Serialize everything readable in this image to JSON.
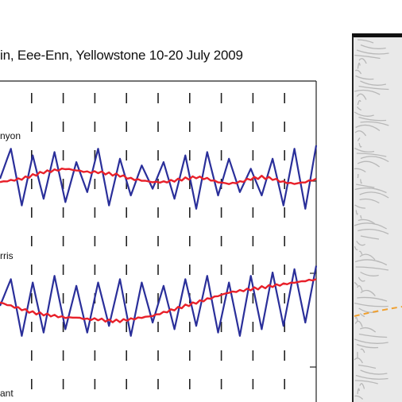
{
  "chart_data": {
    "type": "line",
    "title": "in, Eee-Enn, Yellowstone 10-20 July 2009",
    "x": {
      "label": "",
      "range": [
        10,
        20
      ],
      "unit": "day of July 2009"
    },
    "grid": true,
    "panels": [
      {
        "station_label": "nyon",
        "series": [
          {
            "color": "#2a2f9a",
            "values": [
              0.0,
              0.9,
              -0.8,
              0.7,
              -0.6,
              0.8,
              -0.7,
              0.5,
              -0.4,
              0.9,
              -0.8,
              0.6,
              -0.5,
              0.4,
              -0.3,
              0.5,
              -0.6,
              0.7,
              -0.9,
              0.8,
              -0.5,
              0.6,
              -0.4,
              0.3,
              -0.5,
              0.6,
              -0.8,
              0.9,
              -0.9,
              1.0
            ]
          },
          {
            "color": "#e8202a",
            "values": [
              -0.1,
              -0.05,
              0.0,
              0.1,
              0.2,
              0.25,
              0.3,
              0.25,
              0.2,
              0.2,
              0.15,
              0.1,
              0.0,
              -0.05,
              -0.1,
              -0.1,
              -0.05,
              0.0,
              0.05,
              0.0,
              -0.1,
              -0.15,
              -0.1,
              0.0,
              0.05,
              0.0,
              -0.1,
              -0.15,
              -0.1,
              0.0
            ]
          }
        ]
      },
      {
        "station_label": "rris",
        "series": [
          {
            "color": "#2a2f9a",
            "values": [
              0.0,
              0.8,
              -0.9,
              0.7,
              -0.8,
              0.9,
              -0.7,
              0.6,
              -0.8,
              0.7,
              -0.6,
              0.8,
              -0.9,
              0.7,
              -0.5,
              0.6,
              -0.7,
              0.8,
              -0.6,
              0.9,
              -0.8,
              0.7,
              -0.9,
              0.9,
              -0.7,
              1.0,
              -0.6,
              1.1,
              -0.5,
              1.2
            ]
          },
          {
            "color": "#e8202a",
            "values": [
              0.1,
              0.0,
              -0.1,
              -0.2,
              -0.25,
              -0.3,
              -0.35,
              -0.35,
              -0.4,
              -0.4,
              -0.45,
              -0.45,
              -0.4,
              -0.35,
              -0.3,
              -0.2,
              -0.1,
              0.0,
              0.1,
              0.2,
              0.3,
              0.4,
              0.45,
              0.5,
              0.55,
              0.6,
              0.65,
              0.7,
              0.75,
              0.8
            ]
          }
        ]
      },
      {
        "station_label": "ant",
        "series": []
      }
    ]
  }
}
